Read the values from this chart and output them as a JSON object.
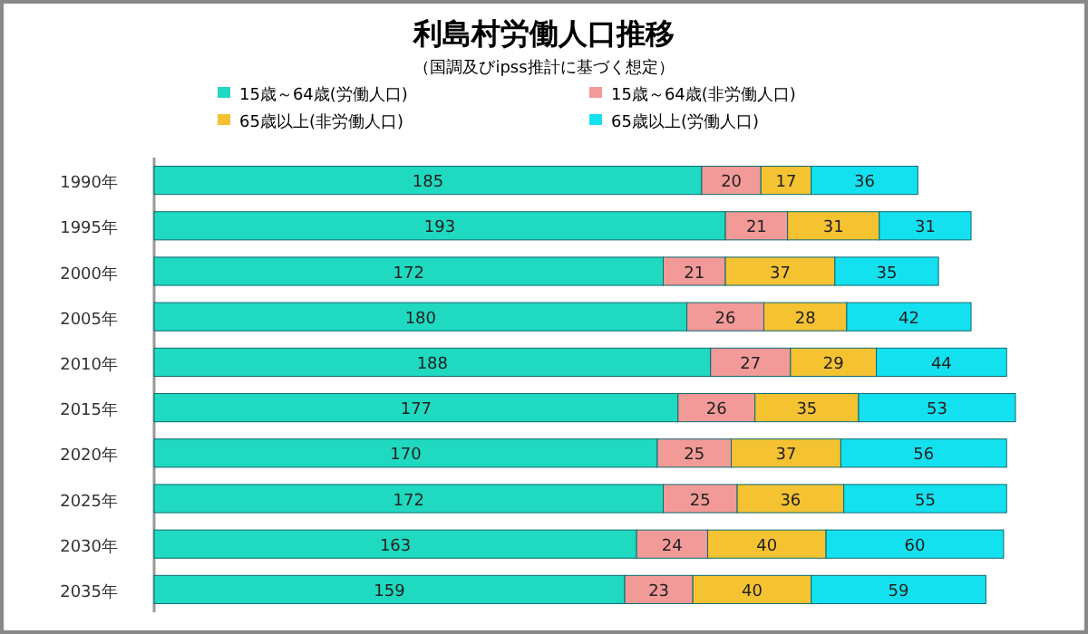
{
  "chart_data": {
    "type": "bar",
    "orientation": "horizontal",
    "stacked": true,
    "data_labels": true,
    "legend": "top",
    "title": "利島村労働人口推移",
    "subtitle": "（国調及びipss推計に基づく想定）",
    "categories": [
      "1990年",
      "1995年",
      "2000年",
      "2005年",
      "2010年",
      "2015年",
      "2020年",
      "2025年",
      "2030年",
      "2035年"
    ],
    "series": [
      {
        "name": "15歳～64歳(労働人口)",
        "color": "#1fd9c0",
        "values": [
          185,
          193,
          172,
          180,
          188,
          177,
          170,
          172,
          163,
          159
        ]
      },
      {
        "name": "15歳～64歳(非労働人口)",
        "color": "#f29a98",
        "values": [
          20,
          21,
          21,
          26,
          27,
          26,
          25,
          25,
          24,
          23
        ]
      },
      {
        "name": "65歳以上(非労働人口)",
        "color": "#f5c232",
        "values": [
          17,
          31,
          37,
          28,
          29,
          35,
          37,
          36,
          40,
          40
        ]
      },
      {
        "name": "65歳以上(労働人口)",
        "color": "#14e1f0",
        "values": [
          36,
          31,
          35,
          42,
          44,
          53,
          56,
          55,
          60,
          59
        ]
      }
    ]
  }
}
